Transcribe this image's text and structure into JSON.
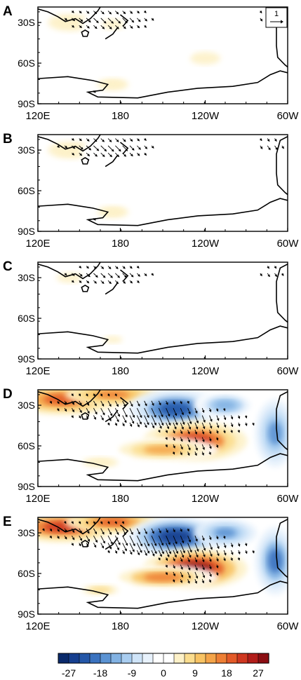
{
  "figure": {
    "panels": [
      {
        "label": "A",
        "amp": 0.35,
        "vec": 0.55,
        "show_ref": true
      },
      {
        "label": "B",
        "amp": 0.3,
        "vec": 0.6,
        "show_ref": false
      },
      {
        "label": "C",
        "amp": 0.28,
        "vec": 0.45,
        "show_ref": false
      },
      {
        "label": "D",
        "amp": 0.85,
        "vec": 0.9,
        "show_ref": false
      },
      {
        "label": "E",
        "amp": 1.0,
        "vec": 1.0,
        "show_ref": false
      }
    ],
    "lat_ticks": [
      "30S",
      "60S",
      "90S"
    ],
    "lon_ticks": [
      "120E",
      "180",
      "120W",
      "60W"
    ],
    "reference_vector": "1",
    "colorbar": {
      "tick_labels": [
        "-27",
        "-18",
        "-9",
        "0",
        "9",
        "18",
        "27"
      ],
      "colors": [
        "#0a2a6b",
        "#163f8f",
        "#2457a8",
        "#3a72bf",
        "#5b93d3",
        "#82b2e3",
        "#a9cdf0",
        "#cfe4f8",
        "#e8f2fc",
        "#ffffff",
        "#ffffff",
        "#fdf1c8",
        "#fbdd8e",
        "#f8c363",
        "#f4a449",
        "#ee7f35",
        "#e35a28",
        "#cf3720",
        "#b21d1a",
        "#8b0e13"
      ]
    }
  }
}
